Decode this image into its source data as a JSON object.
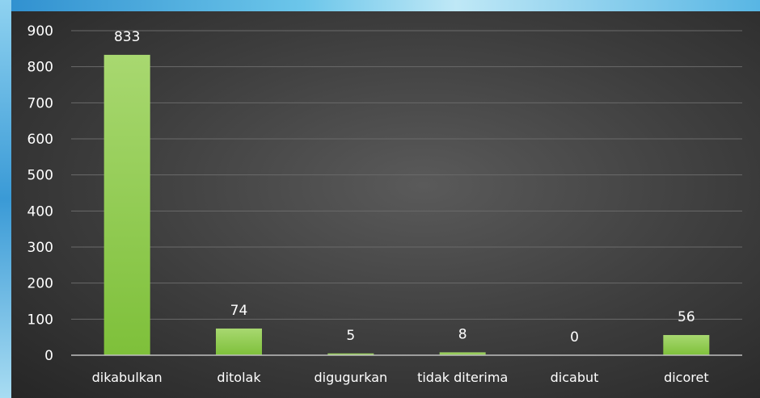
{
  "chart_data": {
    "type": "bar",
    "categories": [
      "dikabulkan",
      "ditolak",
      "digugurkan",
      "tidak diterima",
      "dicabut",
      "dicoret"
    ],
    "values": [
      833,
      74,
      5,
      8,
      0,
      56
    ],
    "data_labels": [
      "833",
      "74",
      "5",
      "8",
      "0",
      "56"
    ],
    "title": "",
    "xlabel": "",
    "ylabel": "",
    "ylim": [
      0,
      900
    ],
    "yticks": [
      0,
      100,
      200,
      300,
      400,
      500,
      600,
      700,
      800,
      900
    ],
    "ytick_labels": [
      "0",
      "100",
      "200",
      "300",
      "400",
      "500",
      "600",
      "700",
      "800",
      "900"
    ],
    "grid": true,
    "legend": "none",
    "colors": {
      "bar_top": "#a8d870",
      "bar_bottom": "#7ec03a",
      "gridline": "#6a6a6a",
      "axis": "#bfbfbf",
      "text": "#ffffff"
    }
  }
}
